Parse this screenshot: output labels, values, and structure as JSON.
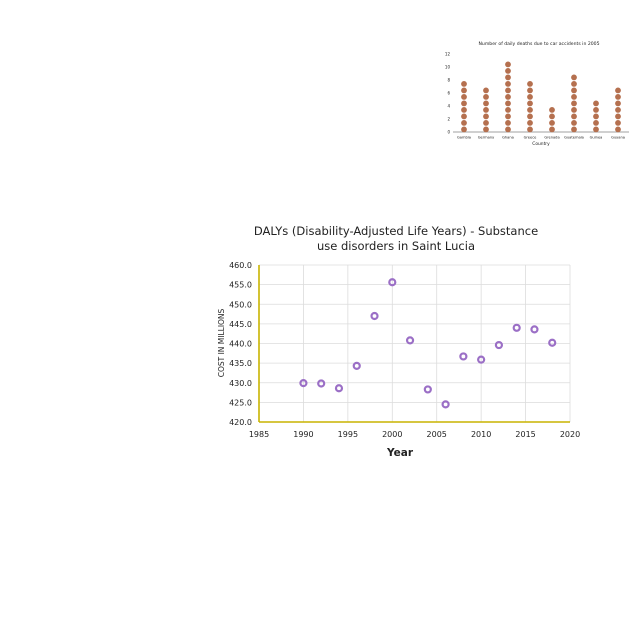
{
  "chart_data": [
    {
      "type": "scatter",
      "title": "Number of daily deaths due to car accidents in 2005",
      "xlabel": "Country",
      "ylabel": "",
      "ylim": [
        0,
        12
      ],
      "yticks": [
        "0",
        "2",
        "4",
        "6",
        "8",
        "10",
        "12"
      ],
      "categories": [
        "Gambia",
        "Germany",
        "Ghana",
        "Greece",
        "Grenada",
        "Guatemala",
        "Guinea",
        "Guyana"
      ],
      "values": [
        8,
        7,
        11,
        8,
        4,
        9,
        5,
        7
      ],
      "marker_color": "#b5704f"
    },
    {
      "type": "scatter",
      "title": "DALYs (Disability-Adjusted Life Years) - Substance use disorders in Saint Lucia",
      "xlabel": "Year",
      "ylabel": "COST IN MILLIONS",
      "xlim": [
        1985,
        2020
      ],
      "ylim": [
        420.0,
        460.0
      ],
      "xticks": [
        "1985",
        "1990",
        "1995",
        "2000",
        "2005",
        "2010",
        "2015",
        "2020"
      ],
      "yticks": [
        "420.0",
        "425.0",
        "430.0",
        "435.0",
        "440.0",
        "445.0",
        "450.0",
        "455.0",
        "460.0"
      ],
      "grid": true,
      "marker_color": "#9b6fc6",
      "axis_color": "#c8b400",
      "points": [
        {
          "x": 1990,
          "y": 429.9
        },
        {
          "x": 1992,
          "y": 429.8
        },
        {
          "x": 1994,
          "y": 428.6
        },
        {
          "x": 1996,
          "y": 434.3
        },
        {
          "x": 1998,
          "y": 447.0
        },
        {
          "x": 2000,
          "y": 455.6
        },
        {
          "x": 2002,
          "y": 440.8
        },
        {
          "x": 2004,
          "y": 428.3
        },
        {
          "x": 2006,
          "y": 424.5
        },
        {
          "x": 2008,
          "y": 436.7
        },
        {
          "x": 2010,
          "y": 435.9
        },
        {
          "x": 2012,
          "y": 439.6
        },
        {
          "x": 2014,
          "y": 444.0
        },
        {
          "x": 2016,
          "y": 443.6
        },
        {
          "x": 2018,
          "y": 440.2
        }
      ]
    }
  ]
}
